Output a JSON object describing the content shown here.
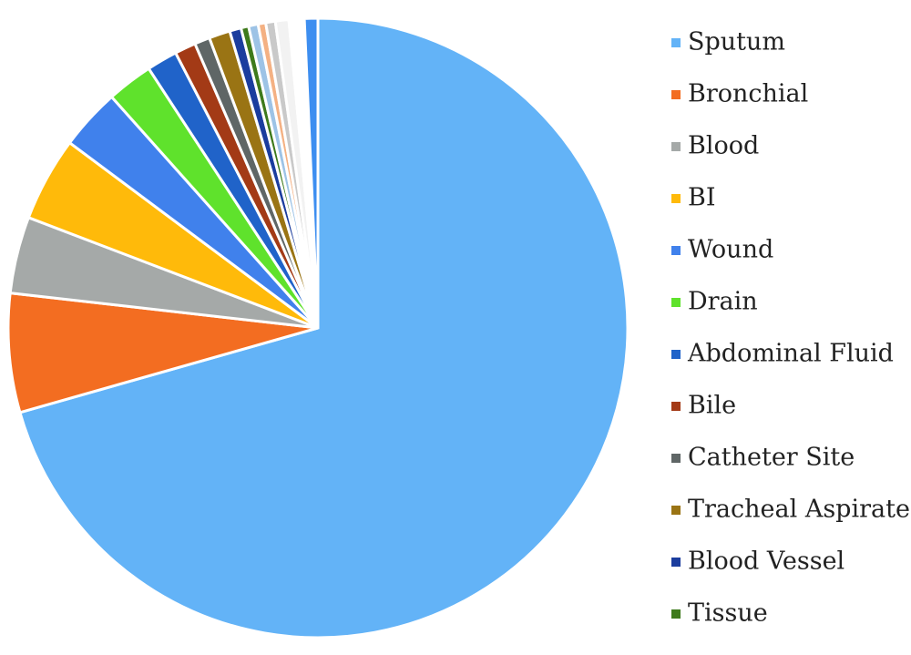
{
  "chart_data": {
    "type": "pie",
    "categories": [
      "Sputum",
      "Bronchial",
      "Blood",
      "BI",
      "Wound",
      "Drain",
      "Abdominal Fluid",
      "Bile",
      "Catheter Site",
      "Tracheal Aspirate",
      "Blood Vessel",
      "Tissue",
      null,
      null,
      null,
      null,
      null,
      null
    ],
    "values": [
      70.6,
      6.2,
      4.0,
      4.4,
      3.2,
      2.4,
      1.6,
      1.1,
      0.8,
      1.1,
      0.6,
      0.4,
      0.5,
      0.4,
      0.5,
      0.7,
      0.8,
      0.7
    ],
    "colors": [
      "#63b3f7",
      "#f36d21",
      "#a5a9a8",
      "#ffba0a",
      "#4081ec",
      "#5fe22c",
      "#2063c9",
      "#a33a16",
      "#5f6666",
      "#9a7414",
      "#1b3d9e",
      "#3e7a1b",
      "#9dc3e6",
      "#f4b183",
      "#c9c9c9",
      "#f2f2f2",
      "#ffffff",
      "#3d8ef0"
    ],
    "legend": "right"
  }
}
